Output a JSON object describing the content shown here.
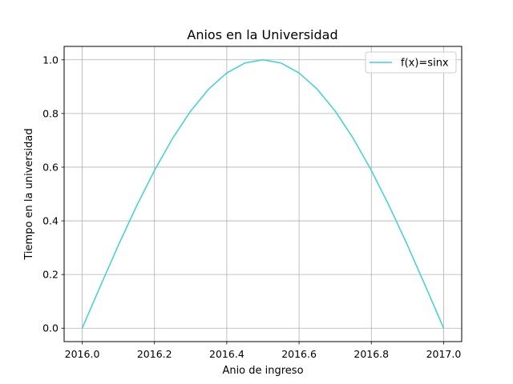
{
  "chart_data": {
    "type": "line",
    "title": "Anios en la Universidad",
    "xlabel": "Anio de ingreso",
    "ylabel": "Tiempo en la universidad",
    "xlim": [
      2015.95,
      2017.05
    ],
    "ylim": [
      -0.05,
      1.05
    ],
    "x_ticks": [
      2016.0,
      2016.2,
      2016.4,
      2016.6,
      2016.8,
      2017.0
    ],
    "x_tick_labels": [
      "2016.0",
      "2016.2",
      "2016.4",
      "2016.6",
      "2016.8",
      "2017.0"
    ],
    "y_ticks": [
      0.0,
      0.2,
      0.4,
      0.6,
      0.8,
      1.0
    ],
    "y_tick_labels": [
      "0.0",
      "0.2",
      "0.4",
      "0.6",
      "0.8",
      "1.0"
    ],
    "grid": true,
    "legend_position": "top-right",
    "series": [
      {
        "name": "f(x)=sinx",
        "color": "#40d0d0",
        "x": [
          2016.0,
          2016.05,
          2016.1,
          2016.15,
          2016.2,
          2016.25,
          2016.3,
          2016.35,
          2016.4,
          2016.45,
          2016.5,
          2016.55,
          2016.6,
          2016.65,
          2016.7,
          2016.75,
          2016.8,
          2016.85,
          2016.9,
          2016.95,
          2017.0
        ],
        "y": [
          0.0,
          0.156,
          0.309,
          0.454,
          0.588,
          0.707,
          0.809,
          0.891,
          0.951,
          0.988,
          1.0,
          0.988,
          0.951,
          0.891,
          0.809,
          0.707,
          0.588,
          0.454,
          0.309,
          0.156,
          0.0
        ]
      }
    ]
  }
}
